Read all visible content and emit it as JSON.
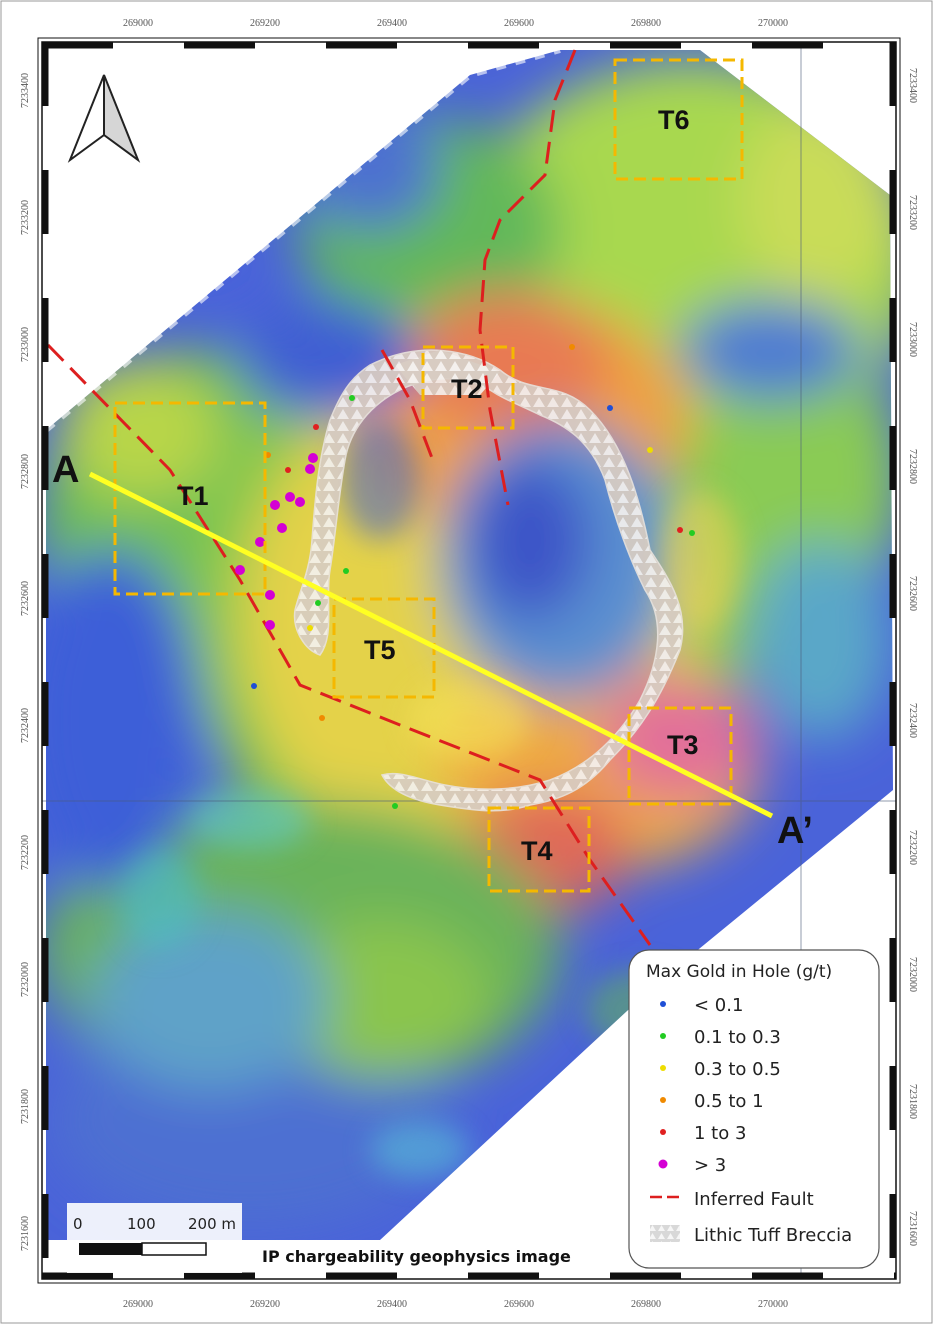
{
  "map": {
    "caption": "IP chargeability geophysics image",
    "x_ticks": [
      "269000",
      "269200",
      "269400",
      "269600",
      "269800",
      "270000"
    ],
    "y_ticks": [
      "7233400",
      "7233200",
      "7233000",
      "7232800",
      "7232600",
      "7232400",
      "7232200",
      "7232000",
      "7231800",
      "7231600"
    ],
    "targets": [
      {
        "label": "T1"
      },
      {
        "label": "T2"
      },
      {
        "label": "T3"
      },
      {
        "label": "T4"
      },
      {
        "label": "T5"
      },
      {
        "label": "T6"
      }
    ],
    "section": {
      "start_label": "A",
      "end_label": "A’"
    },
    "scale_bar": {
      "labels": [
        "0",
        "100",
        "200 m"
      ]
    },
    "colors": {
      "target_box": "#f5b800",
      "section_line": "#ffff22",
      "fault": "#dd1f1f",
      "breccia": "#d9cfc6"
    }
  },
  "legend": {
    "title": "Max Gold in Hole (g/t)",
    "items": [
      {
        "label": "< 0.1",
        "color": "#1f4fd6",
        "type": "dot"
      },
      {
        "label": "0.1 to 0.3",
        "color": "#22cc22",
        "type": "dot"
      },
      {
        "label": "0.3 to 0.5",
        "color": "#eedd00",
        "type": "dot"
      },
      {
        "label": "0.5 to 1",
        "color": "#f08a00",
        "type": "dot"
      },
      {
        "label": "1 to 3",
        "color": "#e02020",
        "type": "dot"
      },
      {
        "label": "> 3",
        "color": "#d400d4",
        "type": "dot"
      },
      {
        "label": "Inferred Fault",
        "color": "#dd1f1f",
        "type": "dash"
      },
      {
        "label": "Lithic Tuff Breccia",
        "color": "#d9cfc6",
        "type": "pattern"
      }
    ]
  }
}
